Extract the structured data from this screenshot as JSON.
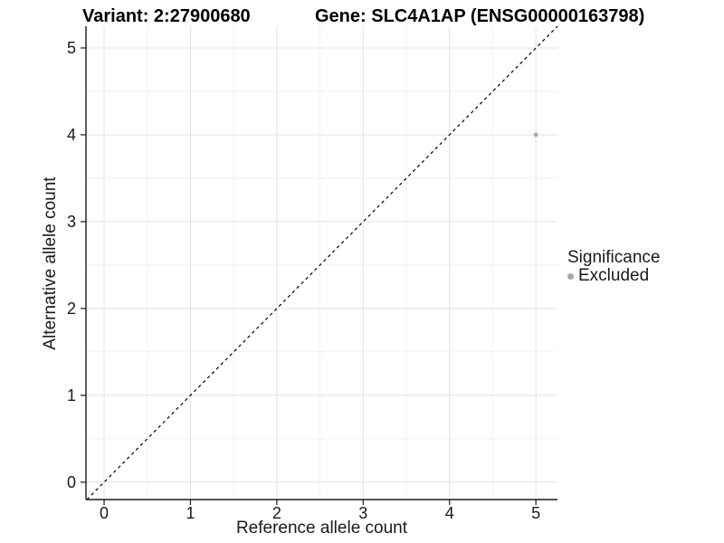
{
  "header": {
    "variant_title": "Variant: 2:27900680",
    "gene_title": "Gene: SLC4A1AP (ENSG00000163798)"
  },
  "chart_data": {
    "type": "scatter",
    "xlabel": "Reference allele count",
    "ylabel": "Alternative allele count",
    "x_ticks": [
      0,
      1,
      2,
      3,
      4,
      5
    ],
    "y_ticks": [
      0,
      1,
      2,
      3,
      4,
      5
    ],
    "x_minor": [
      0.5,
      1.5,
      2.5,
      3.5,
      4.5
    ],
    "y_minor": [
      0.5,
      1.5,
      2.5,
      3.5,
      4.5
    ],
    "xlim": [
      -0.21,
      5.25
    ],
    "ylim": [
      -0.2,
      5.25
    ],
    "grid": true,
    "identity_line": {
      "style": "dashed",
      "equation": "y = x",
      "from": [
        -0.2,
        -0.2
      ],
      "to": [
        5.25,
        5.25
      ]
    },
    "series": [
      {
        "name": "Excluded",
        "color": "#a8a8a8",
        "points": [
          {
            "x": 5,
            "y": 4
          }
        ]
      }
    ],
    "legend": {
      "title": "Significance",
      "position": "right",
      "entries": [
        {
          "label": "Excluded",
          "color": "#a8a8a8"
        }
      ]
    }
  },
  "colors": {
    "background": "#ffffff",
    "grid_major": "#e2e2e2",
    "grid_minor": "#f0f0f0",
    "axis": "#1a1a1a",
    "tick_text": "#1a1a1a",
    "title_text": "#000000",
    "identity_line": "#000000"
  }
}
